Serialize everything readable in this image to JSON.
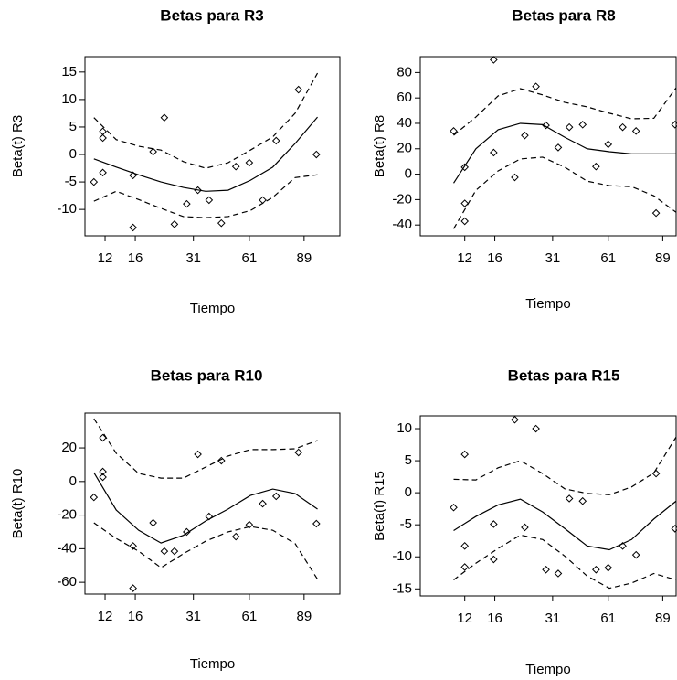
{
  "chart_data": [
    {
      "type": "scatter",
      "title": "Betas para R3",
      "xlabel": "Tiempo",
      "ylabel": "Beta(t)  R3",
      "xlim": [
        0.2,
        23
      ],
      "xticks": [
        {
          "value": 2,
          "label": "12"
        },
        {
          "value": 4.7,
          "label": "16"
        },
        {
          "value": 9.9,
          "label": "31"
        },
        {
          "value": 14.9,
          "label": "61"
        },
        {
          "value": 19.8,
          "label": "89"
        }
      ],
      "ylim": [
        -14.8,
        17.8
      ],
      "yticks": [
        -10,
        -5,
        0,
        5,
        10,
        15
      ],
      "series": [
        {
          "mode": "points",
          "marker": "diamond",
          "color": "#000000",
          "x": [
            1.0,
            1.8,
            1.8,
            1.8,
            4.5,
            4.5,
            6.3,
            7.3,
            8.2,
            9.3,
            10.3,
            11.3,
            12.4,
            13.7,
            14.9,
            16.1,
            17.3,
            19.3,
            20.9
          ],
          "values": [
            -5,
            4.2,
            3,
            -3.3,
            -3.8,
            -13.3,
            0.5,
            6.7,
            -12.7,
            -9,
            -6.5,
            -8.3,
            -12.5,
            -2.2,
            -1.5,
            -8.3,
            2.5,
            11.8,
            0
          ]
        },
        {
          "mode": "line",
          "linestyle": "solid",
          "color": "#000000",
          "x": [
            1,
            3,
            5,
            7,
            9,
            11,
            13,
            15,
            17,
            19,
            21
          ],
          "values": [
            -0.8,
            -2.3,
            -3.7,
            -5,
            -6,
            -6.7,
            -6.5,
            -4.7,
            -2.3,
            2,
            6.8
          ]
        },
        {
          "mode": "line",
          "linestyle": "dashed",
          "color": "#000000",
          "x": [
            1,
            3,
            5,
            7,
            9,
            11,
            13,
            15,
            17,
            19,
            21
          ],
          "values": [
            6.7,
            2.7,
            1.5,
            0.8,
            -1.3,
            -2.5,
            -1.5,
            0.8,
            3.2,
            7.5,
            14.8
          ]
        },
        {
          "mode": "line",
          "linestyle": "dashed",
          "color": "#000000",
          "x": [
            1,
            3,
            5,
            7,
            9,
            11,
            13,
            15,
            17,
            19,
            21
          ],
          "values": [
            -8.5,
            -6.7,
            -8.2,
            -9.8,
            -11.3,
            -11.5,
            -11.3,
            -10.2,
            -7.8,
            -4.2,
            -3.7
          ]
        }
      ]
    },
    {
      "type": "scatter",
      "title": "Betas para R8",
      "xlabel": "Tiempo",
      "ylabel": "Beta(t)  R8",
      "xlim": [
        -2.0,
        21.0
      ],
      "xticks": [
        {
          "value": 2,
          "label": "12"
        },
        {
          "value": 4.7,
          "label": "16"
        },
        {
          "value": 9.9,
          "label": "31"
        },
        {
          "value": 14.9,
          "label": "61"
        },
        {
          "value": 19.8,
          "label": "89"
        }
      ],
      "ylim": [
        -48.5,
        92.5
      ],
      "yticks": [
        -40,
        -20,
        0,
        20,
        40,
        60,
        80
      ],
      "series": [
        {
          "mode": "points",
          "marker": "diamond",
          "color": "#000000",
          "x": [
            1.0,
            2.0,
            2.0,
            2.0,
            4.6,
            4.6,
            6.5,
            7.4,
            8.4,
            9.3,
            10.4,
            11.4,
            12.6,
            13.8,
            14.9,
            16.2,
            17.4,
            19.2,
            20.9
          ],
          "values": [
            34,
            5.5,
            -23,
            -37,
            90,
            17,
            -2.5,
            30.5,
            69,
            38.5,
            21,
            37,
            39,
            6,
            23.5,
            37,
            34,
            -30.6,
            39
          ]
        },
        {
          "mode": "line",
          "linestyle": "solid",
          "color": "#000000",
          "x": [
            1,
            3,
            5,
            7,
            9,
            11,
            13,
            15,
            17,
            19,
            21
          ],
          "values": [
            -7,
            20,
            35,
            40,
            39,
            29,
            20,
            17.7,
            16,
            16,
            16
          ]
        },
        {
          "mode": "line",
          "linestyle": "dashed",
          "color": "#000000",
          "x": [
            1,
            3,
            5,
            7,
            9,
            11,
            13,
            15,
            17,
            19,
            21
          ],
          "values": [
            30.6,
            45,
            61.6,
            67.3,
            62.4,
            56.5,
            53,
            48,
            43.6,
            44,
            68
          ]
        },
        {
          "mode": "line",
          "linestyle": "dashed",
          "color": "#000000",
          "x": [
            1,
            3,
            5,
            7,
            9,
            11,
            13,
            15,
            17,
            19,
            21
          ],
          "values": [
            -43,
            -12.7,
            2.6,
            12,
            13.4,
            5.5,
            -5.5,
            -9,
            -9.8,
            -17,
            -30
          ]
        }
      ]
    },
    {
      "type": "scatter",
      "title": "Betas para R10",
      "xlabel": "Tiempo",
      "ylabel": "Beta(t)   R10",
      "xlim": [
        0.2,
        23
      ],
      "xticks": [
        {
          "value": 2,
          "label": "12"
        },
        {
          "value": 4.7,
          "label": "16"
        },
        {
          "value": 9.9,
          "label": "31"
        },
        {
          "value": 14.9,
          "label": "61"
        },
        {
          "value": 19.8,
          "label": "89"
        }
      ],
      "ylim": [
        -67,
        40.7
      ],
      "yticks": [
        -60,
        -40,
        -20,
        0,
        20
      ],
      "series": [
        {
          "mode": "points",
          "marker": "diamond",
          "color": "#000000",
          "x": [
            1.0,
            1.8,
            1.8,
            1.8,
            4.5,
            4.5,
            6.3,
            7.3,
            8.2,
            9.3,
            10.3,
            11.3,
            12.4,
            13.7,
            14.9,
            16.1,
            17.3,
            19.3,
            20.9
          ],
          "values": [
            -9.4,
            26,
            5.9,
            2.6,
            -38.4,
            -63.5,
            -24.6,
            -41.5,
            -41.5,
            -30,
            16.2,
            -20.8,
            12.4,
            -32.8,
            -25.7,
            -13.2,
            -8.8,
            17.3,
            -25.1
          ]
        },
        {
          "mode": "line",
          "linestyle": "solid",
          "color": "#000000",
          "x": [
            1,
            3,
            5,
            7,
            9,
            11,
            13,
            15,
            17,
            19,
            21
          ],
          "values": [
            5.3,
            -17,
            -29,
            -36.6,
            -32,
            -23.5,
            -16.4,
            -8.3,
            -4.5,
            -7.2,
            -16.4
          ]
        },
        {
          "mode": "line",
          "linestyle": "dashed",
          "color": "#000000",
          "x": [
            1,
            3,
            5,
            7,
            9,
            11,
            13,
            15,
            17,
            19,
            21
          ],
          "values": [
            37.4,
            16.8,
            4.8,
            2,
            2,
            8.6,
            15.2,
            19,
            19,
            19.5,
            24.4
          ]
        },
        {
          "mode": "line",
          "linestyle": "dashed",
          "color": "#000000",
          "x": [
            1,
            3,
            5,
            7,
            9,
            11,
            13,
            15,
            17,
            19,
            21
          ],
          "values": [
            -24.6,
            -33.9,
            -41.5,
            -51.3,
            -43,
            -35.5,
            -30,
            -26.8,
            -29,
            -37,
            -58.2
          ]
        }
      ]
    },
    {
      "type": "scatter",
      "title": "Betas para R15",
      "xlabel": "Tiempo",
      "ylabel": "Beta(t)  R15",
      "xlim": [
        -2.0,
        21.0
      ],
      "xticks": [
        {
          "value": 2,
          "label": "12"
        },
        {
          "value": 4.7,
          "label": "16"
        },
        {
          "value": 9.9,
          "label": "31"
        },
        {
          "value": 14.9,
          "label": "61"
        },
        {
          "value": 19.8,
          "label": "89"
        }
      ],
      "ylim": [
        -16.1,
        12
      ],
      "yticks": [
        -15,
        -10,
        -5,
        0,
        5,
        10
      ],
      "series": [
        {
          "mode": "points",
          "marker": "diamond",
          "color": "#000000",
          "x": [
            1.0,
            2.0,
            2.0,
            2.0,
            4.6,
            4.6,
            6.5,
            7.4,
            8.4,
            9.3,
            10.4,
            11.4,
            12.6,
            13.8,
            14.9,
            16.2,
            17.4,
            19.2,
            20.9
          ],
          "values": [
            -2.3,
            6,
            -8.3,
            -11.6,
            -4.9,
            -10.4,
            11.4,
            -5.4,
            10,
            -12,
            -12.6,
            -0.9,
            -1.3,
            -12,
            -11.7,
            -8.3,
            -9.7,
            3,
            -5.6
          ]
        },
        {
          "mode": "line",
          "linestyle": "solid",
          "color": "#000000",
          "x": [
            1,
            3,
            5,
            7,
            9,
            11,
            13,
            15,
            17,
            19,
            21
          ],
          "values": [
            -5.9,
            -3.7,
            -1.9,
            -1,
            -3,
            -5.6,
            -8.3,
            -8.9,
            -7.3,
            -4.1,
            -1.3
          ]
        },
        {
          "mode": "line",
          "linestyle": "dashed",
          "color": "#000000",
          "x": [
            1,
            3,
            5,
            7,
            9,
            11,
            13,
            15,
            17,
            19,
            21
          ],
          "values": [
            2.1,
            2,
            3.9,
            5,
            3,
            0.6,
            -0.1,
            -0.3,
            0.9,
            3.1,
            8.7
          ]
        },
        {
          "mode": "line",
          "linestyle": "dashed",
          "color": "#000000",
          "x": [
            1,
            3,
            5,
            7,
            9,
            11,
            13,
            15,
            17,
            19,
            21
          ],
          "values": [
            -13.6,
            -11,
            -8.7,
            -6.6,
            -7.3,
            -9.9,
            -13,
            -14.9,
            -14.1,
            -12.6,
            -13.6
          ]
        }
      ]
    }
  ]
}
